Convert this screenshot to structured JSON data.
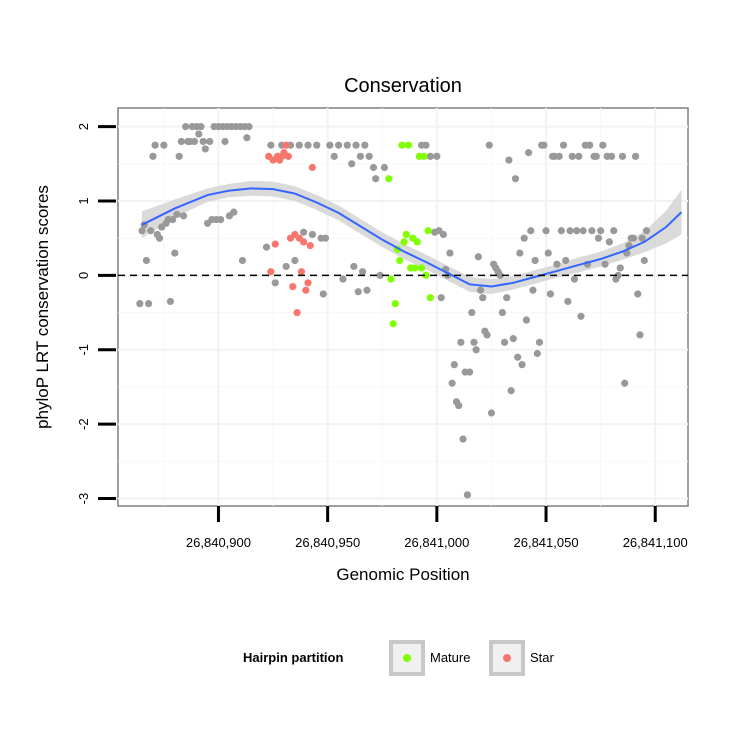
{
  "chart_data": {
    "type": "scatter",
    "title": "Conservation",
    "xlabel": "Genomic Position",
    "ylabel": "phyloP LRT conservation scores",
    "xlim": [
      26840854,
      26841115
    ],
    "ylim": [
      -3.1,
      2.25
    ],
    "x_ticks": [
      26840900,
      26840950,
      26841000,
      26841050,
      26841100
    ],
    "x_tick_labels": [
      "26,840,900",
      "26,840,950",
      "26,841,000",
      "26,841,050",
      "26,841,100"
    ],
    "y_ticks": [
      -3,
      -2,
      -1,
      0,
      1,
      2
    ],
    "y_tick_labels": [
      "-3",
      "-2",
      "-1",
      "0",
      "1",
      "2"
    ],
    "reference_line": {
      "y": 0,
      "style": "dashed"
    },
    "legend": {
      "title": "Hairpin partition",
      "entries": [
        {
          "label": "Mature",
          "color": "#80ff00"
        },
        {
          "label": "Star",
          "color": "#f8766d"
        }
      ]
    },
    "colors": {
      "other": "#999999",
      "mature": "#80ff00",
      "star": "#f8766d",
      "smooth": "#3366ff",
      "band": "#d3d3d3"
    },
    "series": [
      {
        "name": "Other",
        "points": [
          [
            26840864,
            -0.38
          ],
          [
            26840865,
            0.6
          ],
          [
            26840866,
            0.68
          ],
          [
            26840867,
            0.2
          ],
          [
            26840868,
            -0.38
          ],
          [
            26840869,
            0.6
          ],
          [
            26840870,
            1.6
          ],
          [
            26840871,
            1.75
          ],
          [
            26840872,
            0.55
          ],
          [
            26840873,
            0.5
          ],
          [
            26840874,
            0.65
          ],
          [
            26840875,
            1.75
          ],
          [
            26840876,
            0.7
          ],
          [
            26840877,
            0.75
          ],
          [
            26840878,
            -0.35
          ],
          [
            26840879,
            0.75
          ],
          [
            26840880,
            0.3
          ],
          [
            26840881,
            0.82
          ],
          [
            26840882,
            1.6
          ],
          [
            26840883,
            1.8
          ],
          [
            26840884,
            0.8
          ],
          [
            26840885,
            2.0
          ],
          [
            26840886,
            1.8
          ],
          [
            26840887,
            1.8
          ],
          [
            26840888,
            2.0
          ],
          [
            26840889,
            1.8
          ],
          [
            26840890,
            2.0
          ],
          [
            26840891,
            1.9
          ],
          [
            26840892,
            2.0
          ],
          [
            26840893,
            1.8
          ],
          [
            26840894,
            1.7
          ],
          [
            26840895,
            0.7
          ],
          [
            26840896,
            1.8
          ],
          [
            26840897,
            0.75
          ],
          [
            26840898,
            2.0
          ],
          [
            26840899,
            0.75
          ],
          [
            26840900,
            2.0
          ],
          [
            26840901,
            0.75
          ],
          [
            26840902,
            2.0
          ],
          [
            26840903,
            1.8
          ],
          [
            26840904,
            2.0
          ],
          [
            26840905,
            0.8
          ],
          [
            26840906,
            2.0
          ],
          [
            26840907,
            0.85
          ],
          [
            26840908,
            2.0
          ],
          [
            26840910,
            2.0
          ],
          [
            26840911,
            0.2
          ],
          [
            26840912,
            2.0
          ],
          [
            26840913,
            1.85
          ],
          [
            26840914,
            2.0
          ],
          [
            26840922,
            0.38
          ],
          [
            26840924,
            1.75
          ],
          [
            26840926,
            -0.1
          ],
          [
            26840929,
            1.75
          ],
          [
            26840931,
            0.12
          ],
          [
            26840933,
            1.75
          ],
          [
            26840935,
            0.2
          ],
          [
            26840937,
            1.75
          ],
          [
            26840939,
            0.58
          ],
          [
            26840941,
            1.75
          ],
          [
            26840943,
            0.55
          ],
          [
            26840945,
            1.75
          ],
          [
            26840947,
            0.5
          ],
          [
            26840948,
            -0.25
          ],
          [
            26840949,
            0.5
          ],
          [
            26840951,
            1.75
          ],
          [
            26840953,
            1.6
          ],
          [
            26840955,
            1.75
          ],
          [
            26840957,
            -0.05
          ],
          [
            26840959,
            1.75
          ],
          [
            26840961,
            1.5
          ],
          [
            26840962,
            0.12
          ],
          [
            26840963,
            1.75
          ],
          [
            26840964,
            -0.22
          ],
          [
            26840965,
            1.6
          ],
          [
            26840966,
            0.05
          ],
          [
            26840967,
            1.75
          ],
          [
            26840968,
            -0.2
          ],
          [
            26840969,
            1.6
          ],
          [
            26840971,
            1.45
          ],
          [
            26840972,
            1.3
          ],
          [
            26840974,
            0.0
          ],
          [
            26840976,
            1.45
          ],
          [
            26840993,
            1.75
          ],
          [
            26840995,
            1.75
          ],
          [
            26840997,
            1.6
          ],
          [
            26840999,
            0.58
          ],
          [
            26841000,
            1.6
          ],
          [
            26841001,
            0.6
          ],
          [
            26841002,
            -0.3
          ],
          [
            26841003,
            0.55
          ],
          [
            26841004,
            0.08
          ],
          [
            26841005,
            0.0
          ],
          [
            26841006,
            0.3
          ],
          [
            26841007,
            -1.45
          ],
          [
            26841008,
            -1.2
          ],
          [
            26841009,
            -1.7
          ],
          [
            26841010,
            -1.75
          ],
          [
            26841011,
            -0.9
          ],
          [
            26841012,
            -2.2
          ],
          [
            26841013,
            -1.3
          ],
          [
            26841014,
            -2.95
          ],
          [
            26841015,
            -1.3
          ],
          [
            26841016,
            -0.5
          ],
          [
            26841017,
            -0.9
          ],
          [
            26841018,
            -1.0
          ],
          [
            26841019,
            0.25
          ],
          [
            26841020,
            -0.2
          ],
          [
            26841021,
            -0.3
          ],
          [
            26841022,
            -0.75
          ],
          [
            26841023,
            -0.8
          ],
          [
            26841024,
            1.75
          ],
          [
            26841025,
            -1.85
          ],
          [
            26841026,
            0.15
          ],
          [
            26841027,
            0.1
          ],
          [
            26841028,
            0.05
          ],
          [
            26841029,
            0.0
          ],
          [
            26841030,
            -0.5
          ],
          [
            26841031,
            -0.9
          ],
          [
            26841032,
            -0.3
          ],
          [
            26841033,
            1.55
          ],
          [
            26841034,
            -1.55
          ],
          [
            26841035,
            -0.85
          ],
          [
            26841036,
            1.3
          ],
          [
            26841037,
            -1.1
          ],
          [
            26841038,
            0.3
          ],
          [
            26841039,
            -1.2
          ],
          [
            26841040,
            0.5
          ],
          [
            26841041,
            -0.6
          ],
          [
            26841042,
            1.65
          ],
          [
            26841043,
            0.6
          ],
          [
            26841044,
            -0.2
          ],
          [
            26841045,
            0.2
          ],
          [
            26841046,
            -1.05
          ],
          [
            26841047,
            -0.9
          ],
          [
            26841048,
            1.75
          ],
          [
            26841049,
            1.75
          ],
          [
            26841050,
            0.6
          ],
          [
            26841051,
            0.3
          ],
          [
            26841052,
            -0.25
          ],
          [
            26841053,
            1.6
          ],
          [
            26841054,
            1.6
          ],
          [
            26841055,
            0.15
          ],
          [
            26841056,
            1.6
          ],
          [
            26841057,
            0.6
          ],
          [
            26841058,
            1.75
          ],
          [
            26841059,
            0.2
          ],
          [
            26841060,
            -0.35
          ],
          [
            26841061,
            0.6
          ],
          [
            26841062,
            1.6
          ],
          [
            26841063,
            -0.05
          ],
          [
            26841064,
            0.6
          ],
          [
            26841065,
            1.6
          ],
          [
            26841066,
            -0.55
          ],
          [
            26841067,
            0.6
          ],
          [
            26841068,
            1.75
          ],
          [
            26841069,
            0.15
          ],
          [
            26841070,
            1.75
          ],
          [
            26841071,
            0.6
          ],
          [
            26841072,
            1.6
          ],
          [
            26841073,
            1.6
          ],
          [
            26841074,
            0.5
          ],
          [
            26841075,
            0.6
          ],
          [
            26841076,
            1.75
          ],
          [
            26841077,
            0.15
          ],
          [
            26841078,
            1.6
          ],
          [
            26841079,
            0.45
          ],
          [
            26841080,
            1.6
          ],
          [
            26841081,
            0.6
          ],
          [
            26841082,
            -0.05
          ],
          [
            26841083,
            0.0
          ],
          [
            26841084,
            0.1
          ],
          [
            26841085,
            1.6
          ],
          [
            26841086,
            -1.45
          ],
          [
            26841087,
            0.3
          ],
          [
            26841088,
            0.4
          ],
          [
            26841089,
            0.5
          ],
          [
            26841090,
            0.5
          ],
          [
            26841091,
            1.6
          ],
          [
            26841092,
            -0.25
          ],
          [
            26841093,
            -0.8
          ],
          [
            26841094,
            0.5
          ],
          [
            26841095,
            0.2
          ],
          [
            26841096,
            0.6
          ]
        ]
      },
      {
        "name": "Mature",
        "points": [
          [
            26840978,
            1.3
          ],
          [
            26840979,
            -0.05
          ],
          [
            26840980,
            -0.65
          ],
          [
            26840981,
            -0.38
          ],
          [
            26840982,
            0.35
          ],
          [
            26840983,
            0.2
          ],
          [
            26840984,
            1.75
          ],
          [
            26840985,
            0.45
          ],
          [
            26840986,
            0.55
          ],
          [
            26840987,
            1.75
          ],
          [
            26840988,
            0.1
          ],
          [
            26840989,
            0.5
          ],
          [
            26840990,
            0.1
          ],
          [
            26840991,
            0.45
          ],
          [
            26840992,
            1.6
          ],
          [
            26840993,
            0.1
          ],
          [
            26840994,
            1.6
          ],
          [
            26840995,
            0.0
          ],
          [
            26840996,
            0.6
          ],
          [
            26840997,
            -0.3
          ]
        ]
      },
      {
        "name": "Star",
        "points": [
          [
            26840923,
            1.6
          ],
          [
            26840924,
            0.05
          ],
          [
            26840925,
            1.55
          ],
          [
            26840926,
            0.42
          ],
          [
            26840927,
            1.6
          ],
          [
            26840928,
            1.55
          ],
          [
            26840929,
            1.6
          ],
          [
            26840930,
            1.65
          ],
          [
            26840931,
            1.75
          ],
          [
            26840932,
            1.6
          ],
          [
            26840933,
            0.5
          ],
          [
            26840934,
            -0.15
          ],
          [
            26840935,
            0.55
          ],
          [
            26840936,
            -0.5
          ],
          [
            26840937,
            0.5
          ],
          [
            26840938,
            0.05
          ],
          [
            26840939,
            0.45
          ],
          [
            26840940,
            -0.2
          ],
          [
            26840941,
            -0.1
          ],
          [
            26840942,
            0.4
          ],
          [
            26840943,
            1.45
          ]
        ]
      }
    ],
    "smooth": {
      "x": [
        26840865,
        26840880,
        26840895,
        26840905,
        26840915,
        26840925,
        26840935,
        26840945,
        26840955,
        26840965,
        26840975,
        26840985,
        26840995,
        26841005,
        26841015,
        26841025,
        26841035,
        26841045,
        26841055,
        26841065,
        26841075,
        26841085,
        26841095,
        26841105,
        26841112
      ],
      "y": [
        0.68,
        0.9,
        1.08,
        1.14,
        1.17,
        1.16,
        1.1,
        0.98,
        0.84,
        0.66,
        0.48,
        0.32,
        0.18,
        0.03,
        -0.12,
        -0.15,
        -0.1,
        -0.02,
        0.06,
        0.14,
        0.22,
        0.32,
        0.45,
        0.65,
        0.85
      ],
      "band": [
        0.18,
        0.12,
        0.09,
        0.09,
        0.1,
        0.1,
        0.1,
        0.1,
        0.1,
        0.1,
        0.1,
        0.1,
        0.1,
        0.1,
        0.1,
        0.1,
        0.09,
        0.09,
        0.09,
        0.1,
        0.1,
        0.11,
        0.14,
        0.22,
        0.3
      ]
    }
  }
}
